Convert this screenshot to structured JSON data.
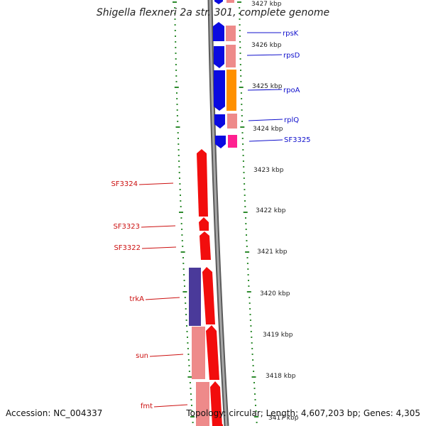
{
  "title": "Shigella flexneri 2a str. 301, complete genome",
  "accession": "Accession: NC_004337",
  "topology": "Topology: circular; Length: 4,607,203 bp; Genes: 4,305",
  "kbp_labels": [
    "3427 kbp",
    "3426 kbp",
    "3425 kbp",
    "3424 kbp",
    "3423 kbp",
    "3422 kbp",
    "3421 kbp",
    "3420 kbp",
    "3419 kbp",
    "3418 kbp",
    "3417 kbp"
  ],
  "forward_gene_labels": [
    "rpsK",
    "rpsD",
    "rpoA",
    "rplQ",
    "SF3325"
  ],
  "reverse_gene_labels": [
    "SF3324",
    "SF3323",
    "SF3322",
    "trkA",
    "sun",
    "fmt"
  ],
  "colors": {
    "forward_label": "#1010cc",
    "reverse_label": "#cc1010",
    "blue_gene": "#0a0ae0",
    "red_gene": "#f20d0d",
    "pink_gene": "#ee8a8a",
    "orange_gene": "#ff9000",
    "magenta_gene": "#ff2090",
    "navy_gene": "#4a3a9a",
    "backbone": "#8c8c8c",
    "tick": "#2e8b2e"
  }
}
